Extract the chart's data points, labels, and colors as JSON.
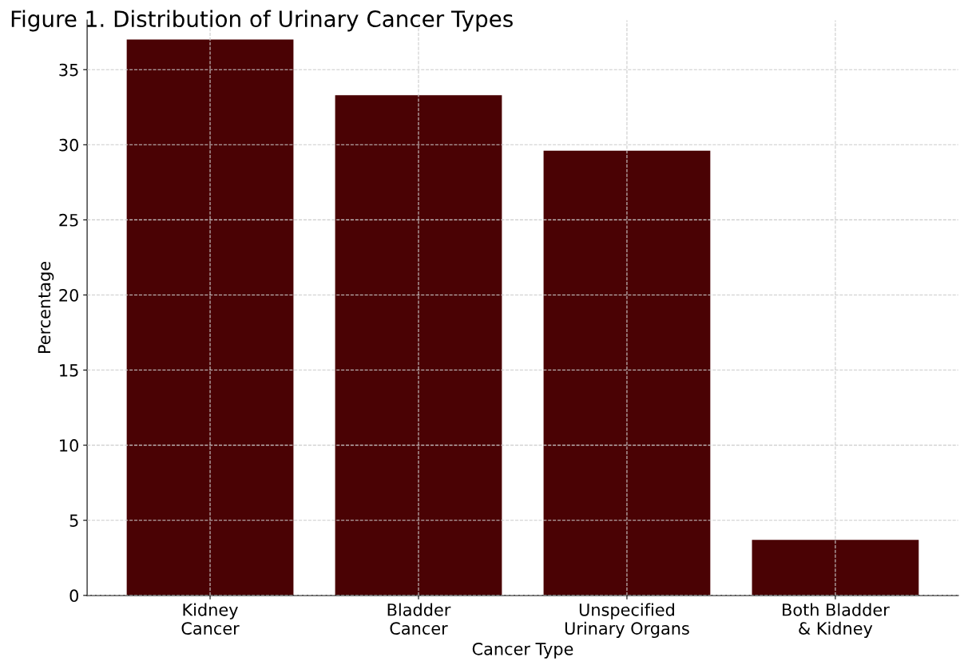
{
  "chart_data": {
    "type": "bar",
    "title": "Figure 1. Distribution of Urinary Cancer Types",
    "categories": [
      "Kidney\nCancer",
      "Bladder\nCancer",
      "Unspecified\nUrinary Organs",
      "Both Bladder\n& Kidney"
    ],
    "values": [
      37.0,
      33.3,
      29.6,
      3.7
    ],
    "color": "#4a0204",
    "xlabel": "Cancer Type",
    "ylabel": "Percentage",
    "ylim": [
      0,
      38.3
    ],
    "yticks": [
      0,
      5,
      10,
      15,
      20,
      25,
      30,
      35
    ],
    "grid": true
  }
}
